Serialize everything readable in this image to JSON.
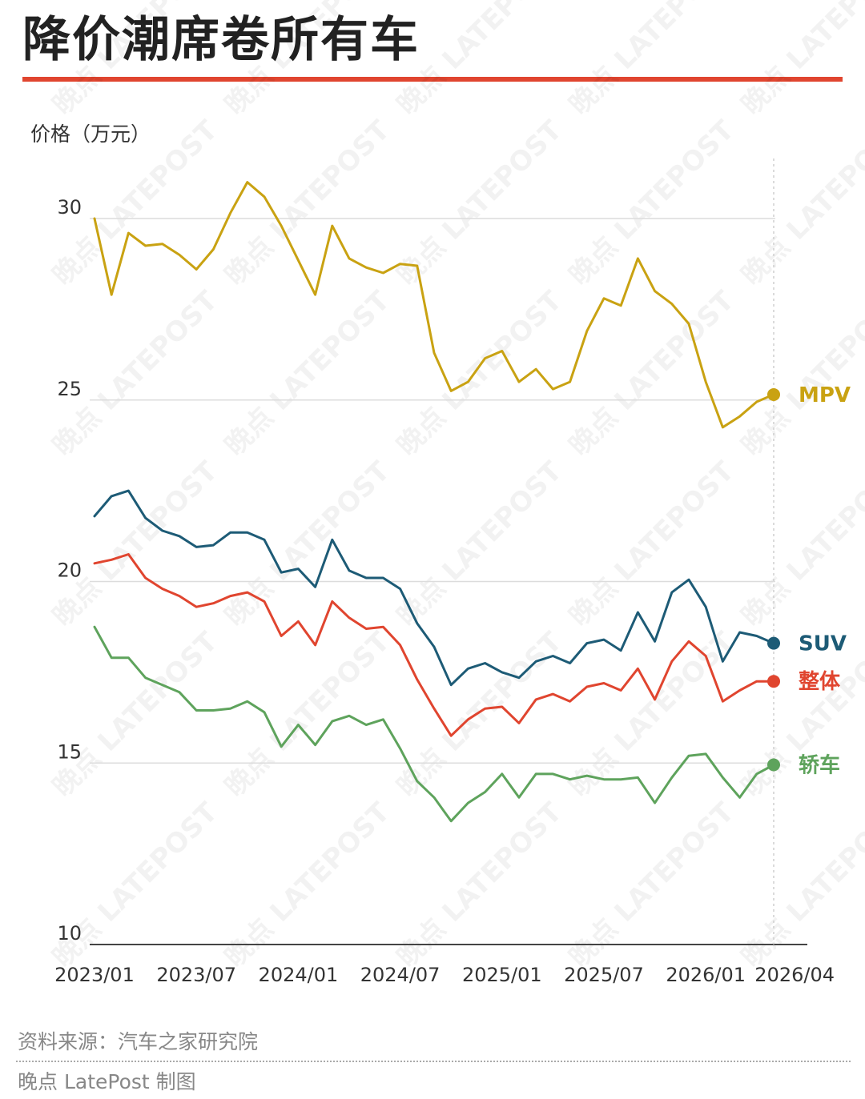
{
  "title": "降价潮席卷所有车",
  "unit_label": "价格（万元）",
  "source": "资料来源：汽车之家研究院",
  "credit": "晚点 LatePost 制图",
  "watermark": "晚点 LATEPOST",
  "chart_data": {
    "type": "line",
    "x": [
      "2023/01",
      "2023/02",
      "2023/03",
      "2023/04",
      "2023/05",
      "2023/06",
      "2023/07",
      "2023/08",
      "2023/09",
      "2023/10",
      "2023/11",
      "2023/12",
      "2024/01",
      "2024/02",
      "2024/03",
      "2024/04",
      "2024/05",
      "2024/06",
      "2024/07",
      "2024/08",
      "2024/09",
      "2024/10",
      "2024/11",
      "2024/12",
      "2025/01",
      "2025/02",
      "2025/03",
      "2025/04",
      "2025/05",
      "2025/06",
      "2025/07",
      "2025/08",
      "2025/09",
      "2025/10",
      "2025/11",
      "2025/12",
      "2026/01",
      "2026/02",
      "2026/03",
      "2026/04",
      "2026/05"
    ],
    "x_ticks": [
      "2023/01",
      "2023/07",
      "2024/01",
      "2024/07",
      "2025/01",
      "2025/07",
      "2026/01",
      "2026/04"
    ],
    "ylim": [
      10,
      31.5
    ],
    "y_ticks": [
      10,
      15,
      20,
      25,
      30
    ],
    "grid": "horizontal",
    "series": [
      {
        "name": "MPV",
        "color": "#c9a212",
        "values": [
          30.0,
          27.9,
          29.6,
          29.25,
          29.3,
          29.0,
          28.6,
          29.15,
          30.15,
          31.0,
          30.6,
          29.8,
          28.85,
          27.9,
          29.8,
          28.9,
          28.65,
          28.5,
          28.75,
          28.7,
          26.3,
          25.25,
          25.5,
          26.15,
          26.35,
          25.5,
          25.85,
          25.3,
          25.5,
          26.9,
          27.8,
          27.6,
          28.9,
          28.0,
          27.65,
          27.1,
          25.5,
          24.25,
          24.55,
          24.95,
          25.15
        ]
      },
      {
        "name": "SUV",
        "color": "#1d5b76",
        "values": [
          21.8,
          22.35,
          22.5,
          21.75,
          21.4,
          21.25,
          20.95,
          21.0,
          21.35,
          21.35,
          21.15,
          20.25,
          20.35,
          19.85,
          21.15,
          20.3,
          20.1,
          20.1,
          19.8,
          18.85,
          18.2,
          17.15,
          17.6,
          17.75,
          17.5,
          17.35,
          17.8,
          17.95,
          17.75,
          18.3,
          18.4,
          18.1,
          19.15,
          18.35,
          19.7,
          20.05,
          19.3,
          17.8,
          18.6,
          18.5,
          18.3
        ]
      },
      {
        "name": "整体",
        "color": "#e0452f",
        "values": [
          20.5,
          20.6,
          20.75,
          20.1,
          19.8,
          19.6,
          19.3,
          19.4,
          19.6,
          19.7,
          19.45,
          18.5,
          18.9,
          18.25,
          19.45,
          19.0,
          18.7,
          18.75,
          18.25,
          17.3,
          16.5,
          15.75,
          16.2,
          16.5,
          16.55,
          16.1,
          16.75,
          16.9,
          16.7,
          17.1,
          17.2,
          17.0,
          17.6,
          16.75,
          17.8,
          18.35,
          17.95,
          16.7,
          17.0,
          17.25,
          17.25
        ]
      },
      {
        "name": "轿车",
        "color": "#5ea35c",
        "values": [
          18.75,
          17.9,
          17.9,
          17.35,
          17.15,
          16.95,
          16.45,
          16.45,
          16.5,
          16.7,
          16.4,
          15.45,
          16.05,
          15.5,
          16.15,
          16.3,
          16.05,
          16.2,
          15.4,
          14.5,
          14.05,
          13.4,
          13.9,
          14.2,
          14.7,
          14.05,
          14.7,
          14.7,
          14.55,
          14.65,
          14.55,
          14.55,
          14.6,
          13.9,
          14.6,
          15.2,
          15.25,
          14.6,
          14.05,
          14.7,
          14.95
        ]
      }
    ]
  }
}
